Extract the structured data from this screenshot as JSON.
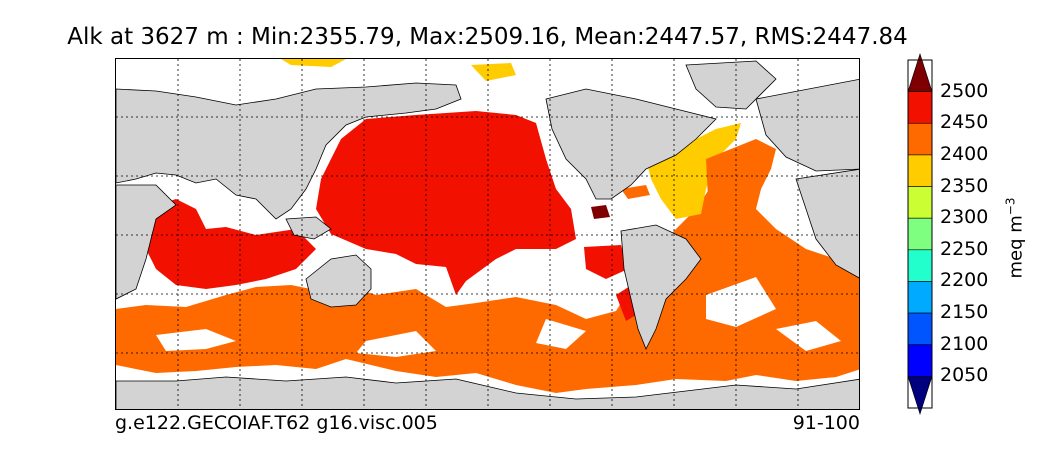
{
  "title": "Alk at 3627 m : Min:2355.79, Max:2509.16, Mean:2447.57, RMS:2447.84",
  "caption_left": "g.e122.GECOIAF.T62 g16.visc.005",
  "caption_right": "91-100",
  "colorbar": {
    "unit": "meq m$^{-3}$",
    "unit_display": "meq m",
    "unit_sup": "−3",
    "tick_labels": [
      "2500",
      "2450",
      "2400",
      "2350",
      "2300",
      "2250",
      "2200",
      "2150",
      "2100",
      "2050"
    ],
    "colors_top_to_bottom": [
      "#7f0000",
      "#f21000",
      "#ff6a00",
      "#ffcc00",
      "#ccff33",
      "#7fff7f",
      "#22ffcc",
      "#00aaff",
      "#0055ff",
      "#0000ff",
      "#00007f"
    ]
  },
  "map": {
    "land_color": "#d3d3d3",
    "ocean_missing_color": "#ffffff",
    "grid": true,
    "value_colors": {
      "deep_red": "#7f0000",
      "red": "#f21000",
      "orange": "#ff6a00",
      "yellow": "#ffcc00"
    }
  }
}
